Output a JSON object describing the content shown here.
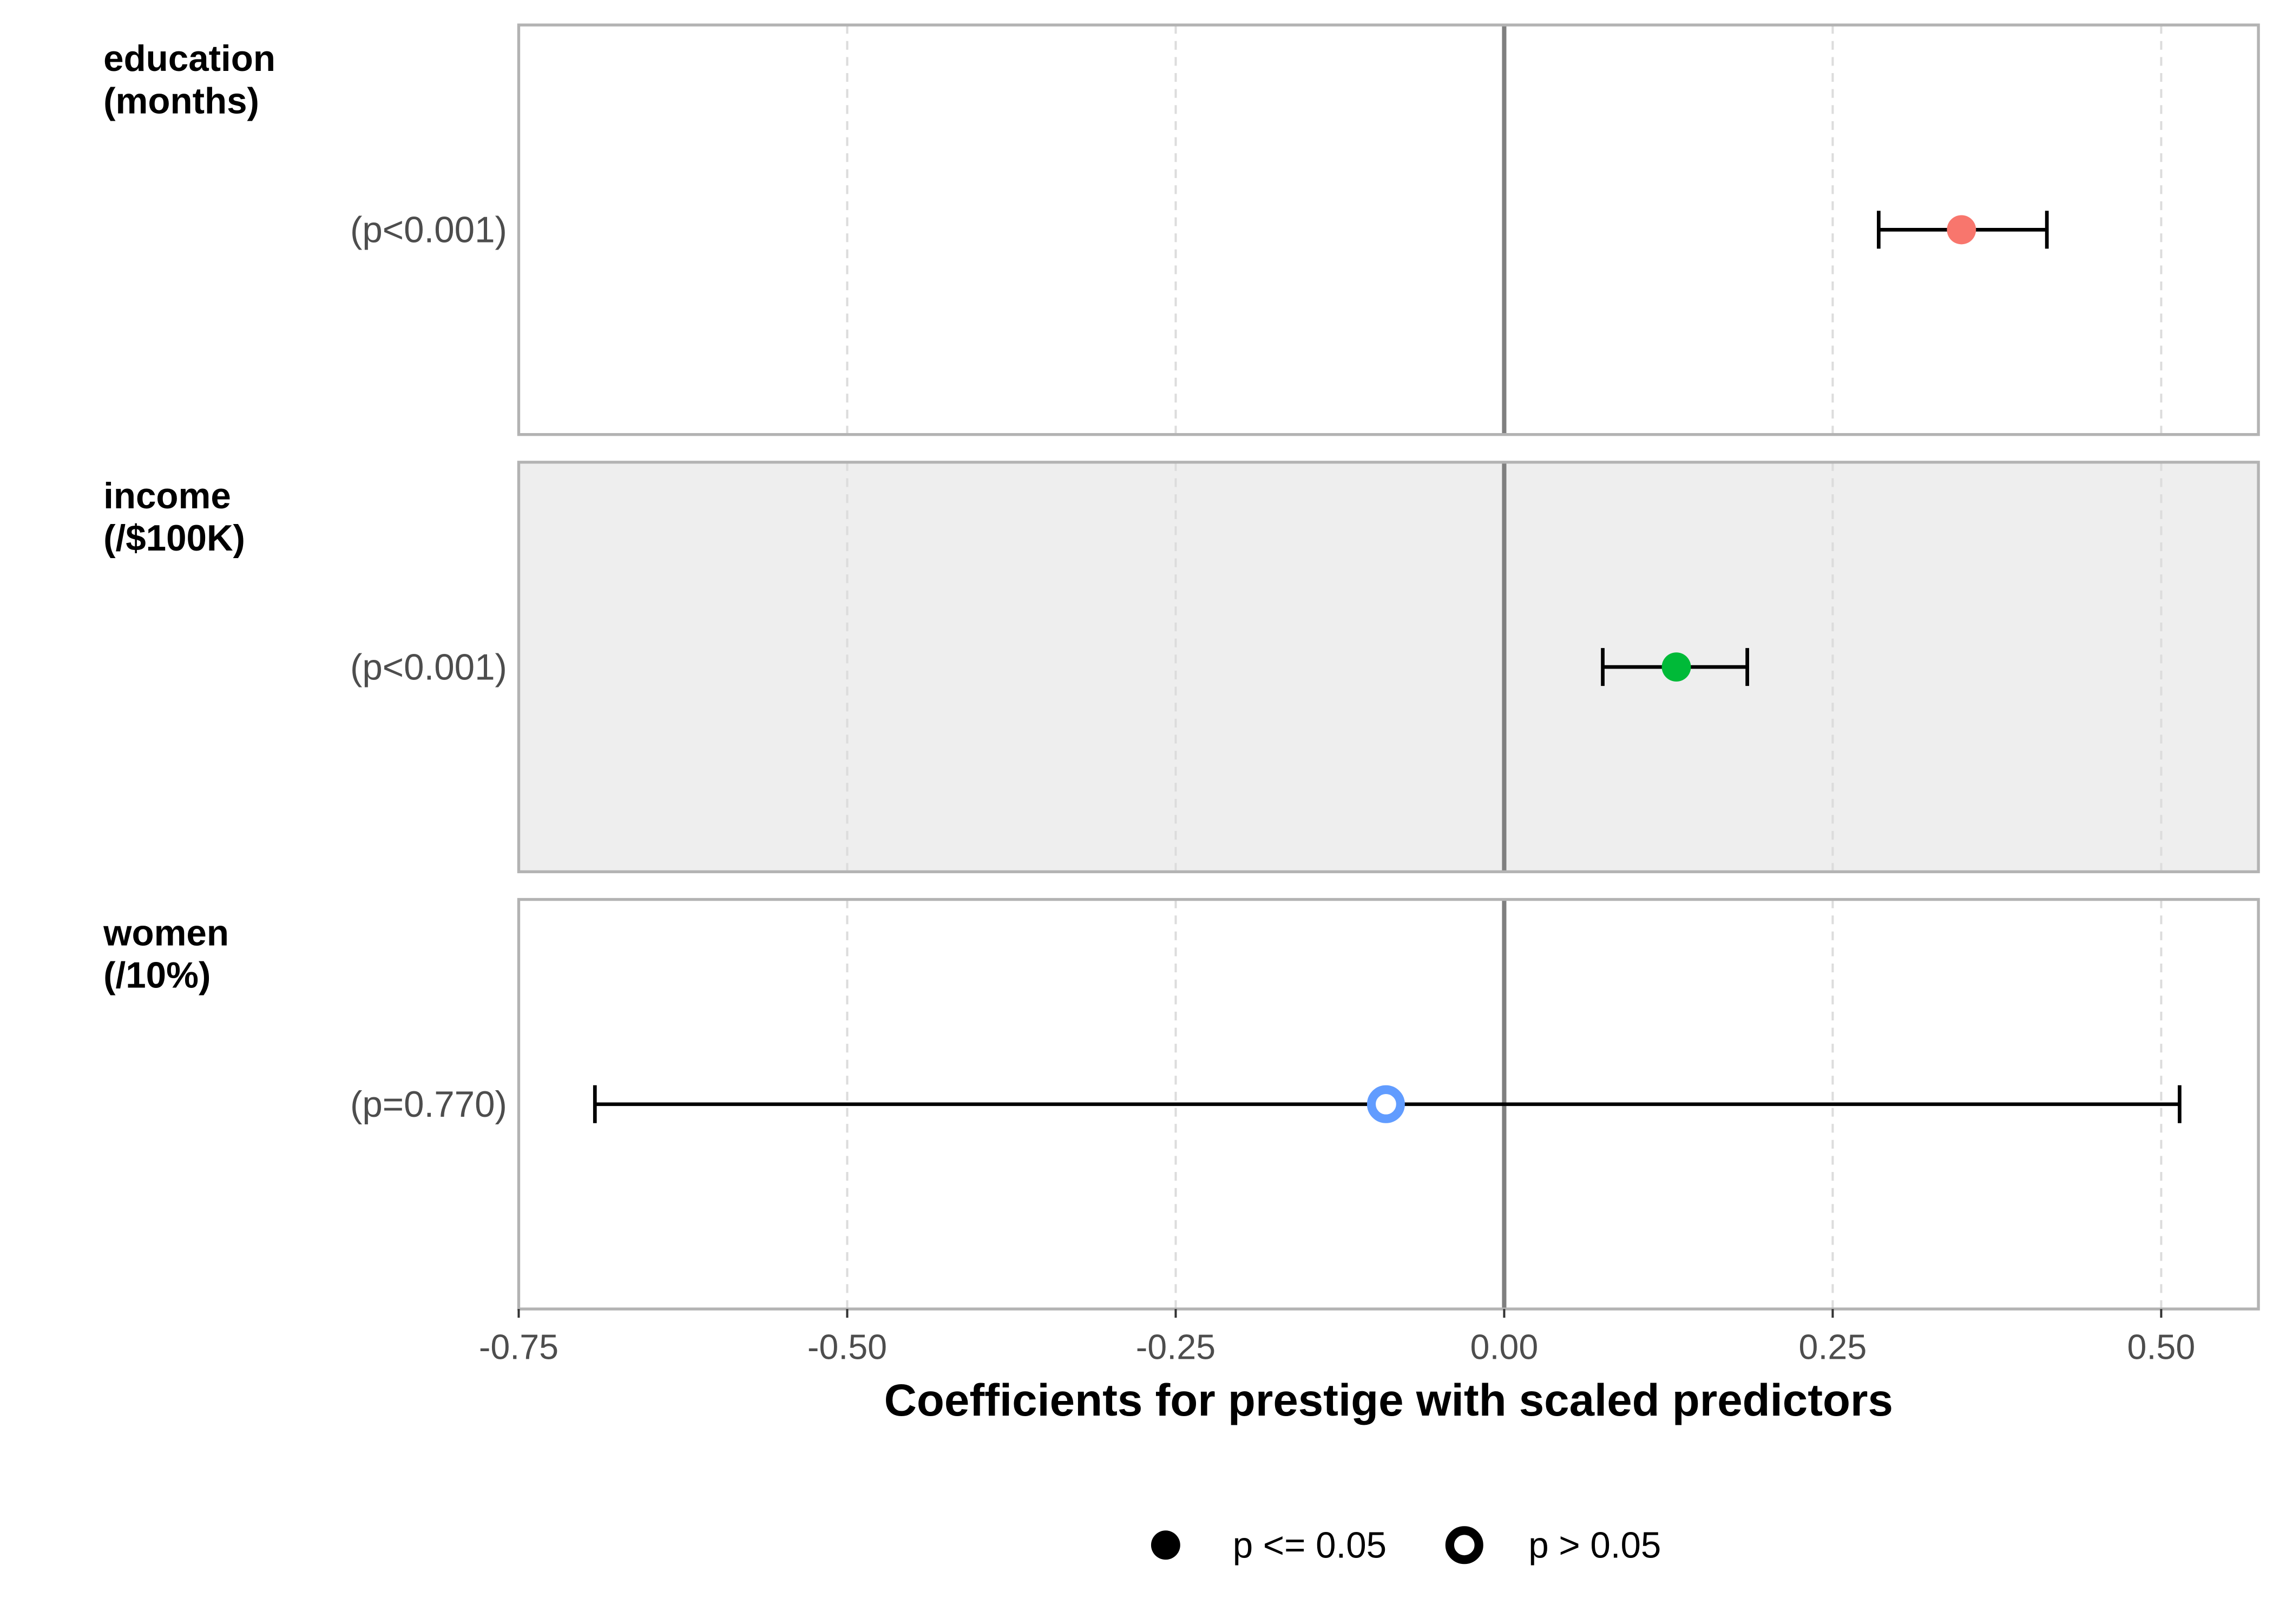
{
  "chart_data": {
    "type": "forest",
    "x_label": "Coefficients for prestige with scaled predictors",
    "xlim": [
      -0.75,
      0.574
    ],
    "xticks": [
      -0.75,
      {
        "value": -0.5,
        "label": "-0.50"
      },
      -0.25,
      {
        "value": 0,
        "label": "0.00"
      },
      0.25,
      {
        "value": 0.5,
        "label": "0.50"
      }
    ],
    "grid": true,
    "reference_line": 0,
    "legend_position": "bottom",
    "facets": [
      {
        "name": [
          "education",
          "(months)"
        ],
        "p_label": "(p<0.001)",
        "value": 0.348,
        "lower": 0.285,
        "upper": 0.413,
        "color": "#f8766d",
        "significant": true,
        "shaded": false
      },
      {
        "name": [
          "income",
          "(/$100K)"
        ],
        "p_label": "(p<0.001)",
        "value": 0.131,
        "lower": 0.075,
        "upper": 0.185,
        "color": "#00ba38",
        "significant": true,
        "shaded": true
      },
      {
        "name": [
          "women",
          "(/10%)"
        ],
        "p_label": "(p=0.770)",
        "value": -0.09,
        "lower": -0.692,
        "upper": 0.514,
        "color": "#619cff",
        "significant": false,
        "shaded": false
      }
    ],
    "legend": [
      {
        "label": "p <= 0.05",
        "filled": true
      },
      {
        "label": "p > 0.05",
        "filled": false
      }
    ]
  }
}
